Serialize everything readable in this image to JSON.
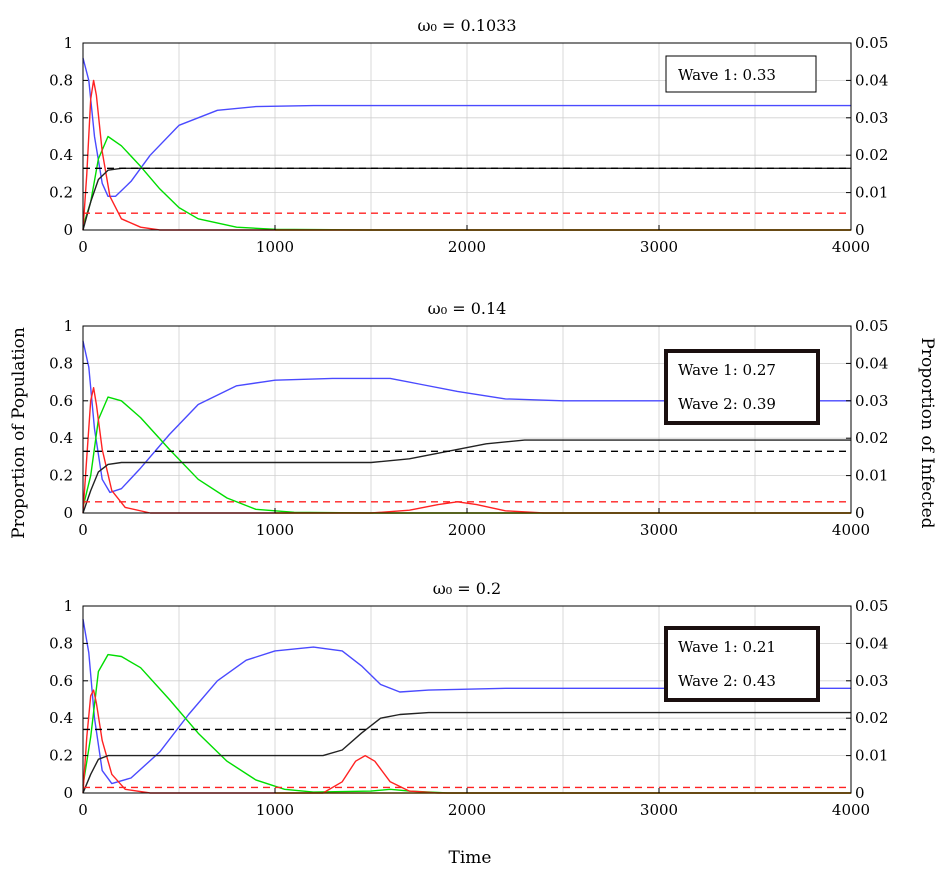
{
  "figure": {
    "xlabel": "Time",
    "ylabel_left": "Proportion of Population",
    "ylabel_right": "Proportion of Infected"
  },
  "chart_data": [
    {
      "type": "line",
      "title": "ω₀ = 0.1033",
      "xlim": [
        0,
        4000
      ],
      "xticks": [
        0,
        1000,
        2000,
        3000,
        4000
      ],
      "ylim_left": [
        0,
        1
      ],
      "yticks_left": [
        "0",
        "0.2",
        "0.4",
        "0.6",
        "0.8",
        "1"
      ],
      "ylim_right": [
        0,
        0.05
      ],
      "yticks_right": [
        "0",
        "0.01",
        "0.02",
        "0.03",
        "0.04",
        "0.05"
      ],
      "grid": true,
      "annotations": [
        "Wave 1:  0.33"
      ],
      "series": [
        {
          "color": "#4a4aff",
          "axis": "left",
          "points": [
            [
              0,
              0.92
            ],
            [
              30,
              0.8
            ],
            [
              60,
              0.5
            ],
            [
              100,
              0.25
            ],
            [
              130,
              0.18
            ],
            [
              170,
              0.18
            ],
            [
              250,
              0.26
            ],
            [
              350,
              0.4
            ],
            [
              500,
              0.56
            ],
            [
              700,
              0.64
            ],
            [
              900,
              0.66
            ],
            [
              1200,
              0.665
            ],
            [
              4000,
              0.665
            ]
          ]
        },
        {
          "color": "#00dd00",
          "axis": "left",
          "points": [
            [
              0,
              0.02
            ],
            [
              40,
              0.15
            ],
            [
              80,
              0.38
            ],
            [
              130,
              0.5
            ],
            [
              200,
              0.45
            ],
            [
              300,
              0.34
            ],
            [
              400,
              0.22
            ],
            [
              500,
              0.12
            ],
            [
              600,
              0.06
            ],
            [
              800,
              0.015
            ],
            [
              1000,
              0.004
            ],
            [
              1500,
              0.0
            ],
            [
              4000,
              0.0
            ]
          ]
        },
        {
          "color": "#ff2222",
          "axis": "left",
          "points": [
            [
              0,
              0.0
            ],
            [
              20,
              0.3
            ],
            [
              40,
              0.7
            ],
            [
              55,
              0.8
            ],
            [
              70,
              0.72
            ],
            [
              100,
              0.42
            ],
            [
              140,
              0.18
            ],
            [
              200,
              0.06
            ],
            [
              300,
              0.015
            ],
            [
              400,
              0.0
            ],
            [
              4000,
              0.0
            ]
          ]
        },
        {
          "color": "#222222",
          "axis": "left",
          "points": [
            [
              0,
              0.0
            ],
            [
              40,
              0.15
            ],
            [
              80,
              0.27
            ],
            [
              130,
              0.32
            ],
            [
              200,
              0.33
            ],
            [
              4000,
              0.33
            ]
          ]
        },
        {
          "color": "#e0a000",
          "axis": "left",
          "points": [
            [
              1000,
              0.0
            ],
            [
              4000,
              0.0
            ]
          ]
        },
        {
          "color": "#000000",
          "axis": "left",
          "dashed": true,
          "points": [
            [
              0,
              0.33
            ],
            [
              4000,
              0.33
            ]
          ]
        },
        {
          "color": "#ff2222",
          "axis": "left",
          "dashed": true,
          "points": [
            [
              0,
              0.09
            ],
            [
              4000,
              0.09
            ]
          ]
        }
      ]
    },
    {
      "type": "line",
      "title": "ω₀ = 0.14",
      "xlim": [
        0,
        4000
      ],
      "xticks": [
        0,
        1000,
        2000,
        3000,
        4000
      ],
      "ylim_left": [
        0,
        1
      ],
      "yticks_left": [
        "0",
        "0.2",
        "0.4",
        "0.6",
        "0.8",
        "1"
      ],
      "ylim_right": [
        0,
        0.05
      ],
      "yticks_right": [
        "0",
        "0.01",
        "0.02",
        "0.03",
        "0.04",
        "0.05"
      ],
      "grid": true,
      "annotations": [
        "Wave 1:  0.27",
        "Wave 2:  0.39"
      ],
      "series": [
        {
          "color": "#4a4aff",
          "axis": "left",
          "points": [
            [
              0,
              0.92
            ],
            [
              30,
              0.78
            ],
            [
              60,
              0.45
            ],
            [
              100,
              0.18
            ],
            [
              140,
              0.11
            ],
            [
              200,
              0.13
            ],
            [
              300,
              0.24
            ],
            [
              450,
              0.42
            ],
            [
              600,
              0.58
            ],
            [
              800,
              0.68
            ],
            [
              1000,
              0.71
            ],
            [
              1300,
              0.72
            ],
            [
              1600,
              0.72
            ],
            [
              1750,
              0.69
            ],
            [
              1950,
              0.65
            ],
            [
              2200,
              0.61
            ],
            [
              2500,
              0.6
            ],
            [
              4000,
              0.6
            ]
          ]
        },
        {
          "color": "#00dd00",
          "axis": "left",
          "points": [
            [
              0,
              0.03
            ],
            [
              40,
              0.2
            ],
            [
              80,
              0.5
            ],
            [
              130,
              0.62
            ],
            [
              200,
              0.6
            ],
            [
              300,
              0.51
            ],
            [
              450,
              0.34
            ],
            [
              600,
              0.18
            ],
            [
              750,
              0.08
            ],
            [
              900,
              0.02
            ],
            [
              1100,
              0.004
            ],
            [
              1500,
              0.0
            ],
            [
              4000,
              0.0
            ]
          ]
        },
        {
          "color": "#ff2222",
          "axis": "left",
          "points": [
            [
              0,
              0.0
            ],
            [
              20,
              0.3
            ],
            [
              40,
              0.6
            ],
            [
              55,
              0.67
            ],
            [
              70,
              0.58
            ],
            [
              100,
              0.34
            ],
            [
              150,
              0.12
            ],
            [
              220,
              0.03
            ],
            [
              350,
              0.0
            ],
            [
              1500,
              0.0
            ],
            [
              1700,
              0.015
            ],
            [
              1850,
              0.045
            ],
            [
              1950,
              0.06
            ],
            [
              2050,
              0.045
            ],
            [
              2200,
              0.012
            ],
            [
              2400,
              0.0
            ],
            [
              4000,
              0.0
            ]
          ]
        },
        {
          "color": "#222222",
          "axis": "left",
          "points": [
            [
              0,
              0.0
            ],
            [
              40,
              0.12
            ],
            [
              80,
              0.22
            ],
            [
              130,
              0.26
            ],
            [
              200,
              0.27
            ],
            [
              1500,
              0.27
            ],
            [
              1700,
              0.29
            ],
            [
              1900,
              0.33
            ],
            [
              2100,
              0.37
            ],
            [
              2300,
              0.39
            ],
            [
              4000,
              0.39
            ]
          ]
        },
        {
          "color": "#e0a000",
          "axis": "left",
          "points": [
            [
              1000,
              0.0
            ],
            [
              4000,
              0.0
            ]
          ]
        },
        {
          "color": "#000000",
          "axis": "left",
          "dashed": true,
          "points": [
            [
              0,
              0.33
            ],
            [
              4000,
              0.33
            ]
          ]
        },
        {
          "color": "#ff2222",
          "axis": "left",
          "dashed": true,
          "points": [
            [
              0,
              0.06
            ],
            [
              4000,
              0.06
            ]
          ]
        }
      ]
    },
    {
      "type": "line",
      "title": "ω₀ = 0.2",
      "xlim": [
        0,
        4000
      ],
      "xticks": [
        0,
        1000,
        2000,
        3000,
        4000
      ],
      "ylim_left": [
        0,
        1
      ],
      "yticks_left": [
        "0",
        "0.2",
        "0.4",
        "0.6",
        "0.8",
        "1"
      ],
      "ylim_right": [
        0,
        0.05
      ],
      "yticks_right": [
        "0",
        "0.01",
        "0.02",
        "0.03",
        "0.04",
        "0.05"
      ],
      "grid": true,
      "annotations": [
        "Wave 1:  0.21",
        "Wave 2:  0.43"
      ],
      "series": [
        {
          "color": "#4a4aff",
          "axis": "left",
          "points": [
            [
              0,
              0.93
            ],
            [
              30,
              0.75
            ],
            [
              60,
              0.4
            ],
            [
              100,
              0.12
            ],
            [
              150,
              0.05
            ],
            [
              250,
              0.08
            ],
            [
              400,
              0.22
            ],
            [
              550,
              0.42
            ],
            [
              700,
              0.6
            ],
            [
              850,
              0.71
            ],
            [
              1000,
              0.76
            ],
            [
              1200,
              0.78
            ],
            [
              1350,
              0.76
            ],
            [
              1450,
              0.68
            ],
            [
              1550,
              0.58
            ],
            [
              1650,
              0.54
            ],
            [
              1800,
              0.55
            ],
            [
              2200,
              0.56
            ],
            [
              4000,
              0.56
            ]
          ]
        },
        {
          "color": "#00dd00",
          "axis": "left",
          "points": [
            [
              0,
              0.04
            ],
            [
              40,
              0.3
            ],
            [
              80,
              0.65
            ],
            [
              130,
              0.74
            ],
            [
              200,
              0.73
            ],
            [
              300,
              0.67
            ],
            [
              450,
              0.5
            ],
            [
              600,
              0.32
            ],
            [
              750,
              0.17
            ],
            [
              900,
              0.07
            ],
            [
              1050,
              0.02
            ],
            [
              1200,
              0.005
            ],
            [
              1500,
              0.01
            ],
            [
              1600,
              0.02
            ],
            [
              1700,
              0.01
            ],
            [
              1900,
              0.0
            ],
            [
              4000,
              0.0
            ]
          ]
        },
        {
          "color": "#ff2222",
          "axis": "left",
          "points": [
            [
              0,
              0.0
            ],
            [
              20,
              0.3
            ],
            [
              40,
              0.52
            ],
            [
              55,
              0.55
            ],
            [
              70,
              0.48
            ],
            [
              100,
              0.28
            ],
            [
              150,
              0.1
            ],
            [
              220,
              0.02
            ],
            [
              350,
              0.0
            ],
            [
              1250,
              0.0
            ],
            [
              1350,
              0.06
            ],
            [
              1420,
              0.17
            ],
            [
              1470,
              0.2
            ],
            [
              1520,
              0.17
            ],
            [
              1600,
              0.06
            ],
            [
              1700,
              0.01
            ],
            [
              1850,
              0.0
            ],
            [
              4000,
              0.0
            ]
          ]
        },
        {
          "color": "#222222",
          "axis": "left",
          "points": [
            [
              0,
              0.0
            ],
            [
              40,
              0.1
            ],
            [
              80,
              0.18
            ],
            [
              130,
              0.2
            ],
            [
              200,
              0.2
            ],
            [
              1250,
              0.2
            ],
            [
              1350,
              0.23
            ],
            [
              1450,
              0.32
            ],
            [
              1550,
              0.4
            ],
            [
              1650,
              0.42
            ],
            [
              1800,
              0.43
            ],
            [
              4000,
              0.43
            ]
          ]
        },
        {
          "color": "#e0a000",
          "axis": "left",
          "points": [
            [
              1000,
              0.0
            ],
            [
              4000,
              0.0
            ]
          ]
        },
        {
          "color": "#000000",
          "axis": "left",
          "dashed": true,
          "points": [
            [
              0,
              0.34
            ],
            [
              4000,
              0.34
            ]
          ]
        },
        {
          "color": "#ff2222",
          "axis": "left",
          "dashed": true,
          "points": [
            [
              0,
              0.03
            ],
            [
              4000,
              0.03
            ]
          ]
        }
      ]
    }
  ]
}
